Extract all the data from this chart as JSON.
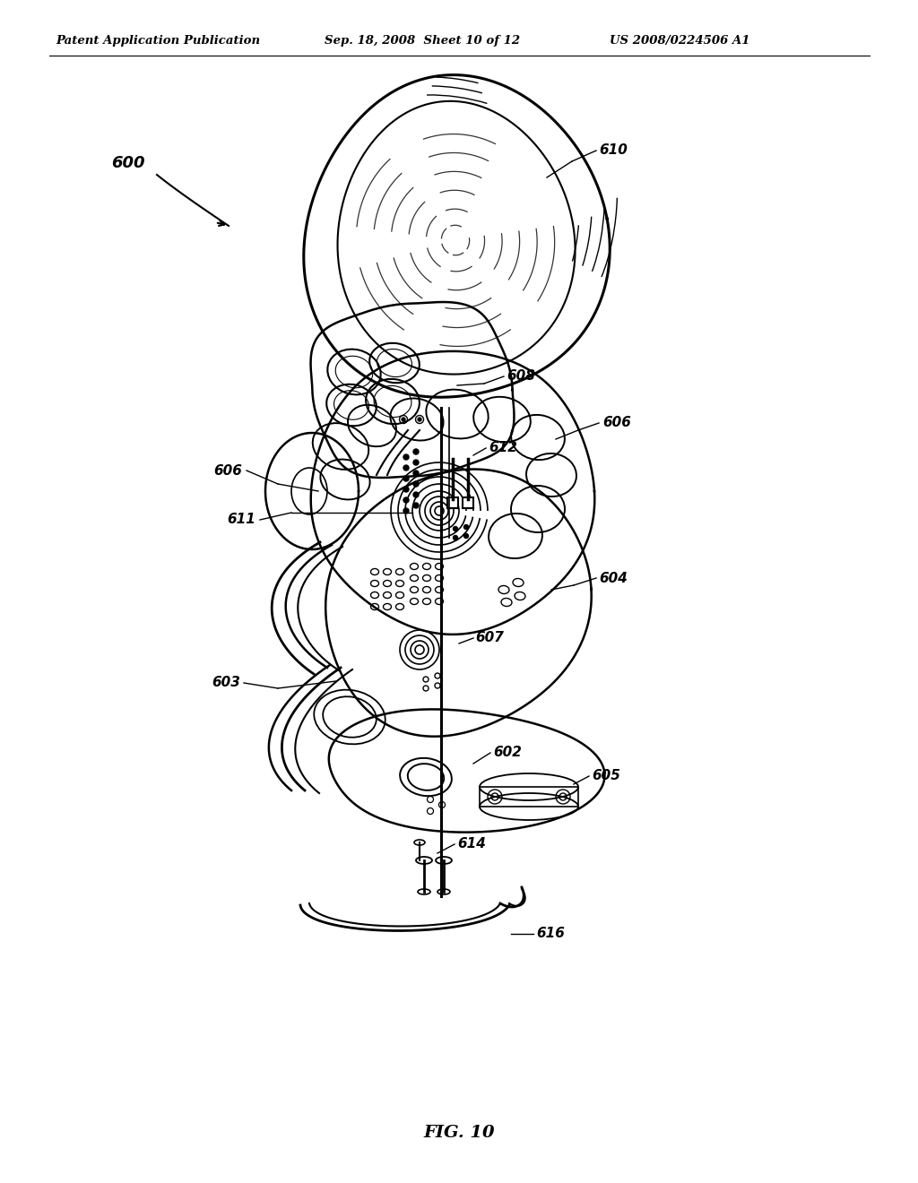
{
  "bg_color": "#ffffff",
  "header_left": "Patent Application Publication",
  "header_mid": "Sep. 18, 2008  Sheet 10 of 12",
  "header_right": "US 2008/0224506 A1",
  "figure_label": "FIG. 10"
}
